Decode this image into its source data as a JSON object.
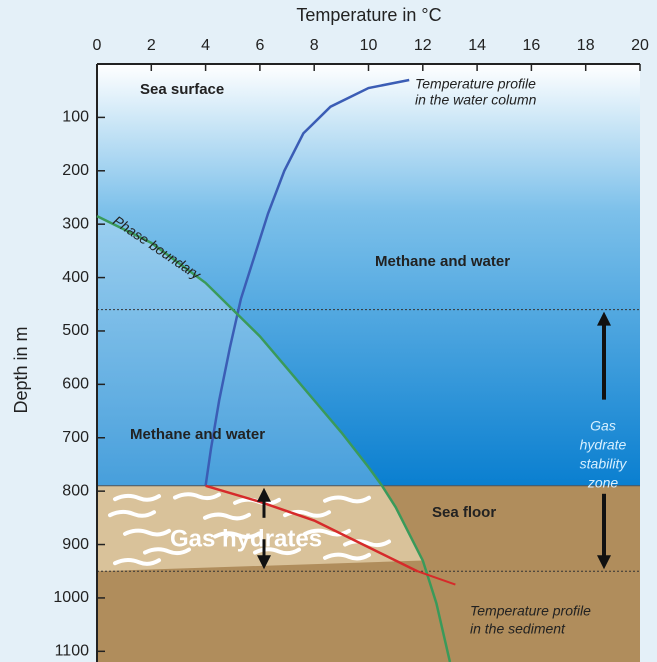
{
  "chart_data": {
    "type": "line",
    "x_label": "Temperature in °C",
    "y_label": "Depth in m",
    "xlim": [
      0,
      20
    ],
    "xticks": [
      0,
      2,
      4,
      6,
      8,
      10,
      12,
      14,
      16,
      18,
      20
    ],
    "ylim": [
      0,
      1120
    ],
    "y_inverted": true,
    "yticks": [
      100,
      200,
      300,
      400,
      500,
      600,
      700,
      800,
      900,
      1000,
      1100
    ],
    "sea_floor_depth": 790,
    "stability_zone_depths": [
      460,
      950
    ],
    "series": [
      {
        "label": [
          "Temperature profile",
          "in the water column"
        ],
        "color": "#3b5db5",
        "x": [
          11.5,
          10,
          8.6,
          7.6,
          6.9,
          6.3,
          5.8,
          5.3,
          4.9,
          4.5,
          4.2,
          4
        ],
        "values": [
          30,
          45,
          80,
          130,
          200,
          280,
          360,
          440,
          530,
          630,
          720,
          790
        ]
      },
      {
        "label": [
          "Temperature profile",
          "in the sediment"
        ],
        "color": "#d62a2a",
        "x": [
          4,
          6,
          8,
          10,
          11.8
        ],
        "values": [
          790,
          820,
          855,
          905,
          950
        ]
      },
      {
        "label": [
          "Phase boundary"
        ],
        "color": "#3a9a5a",
        "x": [
          0,
          2,
          4,
          5,
          6,
          7,
          8,
          9,
          10,
          10.5,
          11,
          12,
          12.5,
          13
        ],
        "values": [
          285,
          335,
          410,
          460,
          510,
          570,
          630,
          690,
          755,
          790,
          830,
          930,
          1010,
          1120
        ]
      }
    ],
    "annotations": {
      "sea_surface": "Sea surface",
      "methane_water_upper": "Methane and water",
      "methane_water_lower": "Methane and water",
      "sea_floor": "Sea floor",
      "gas_hydrates": "Gas hydrates",
      "stability_zone": [
        "Gas",
        "hydrate",
        "stability",
        "zone"
      ]
    }
  }
}
